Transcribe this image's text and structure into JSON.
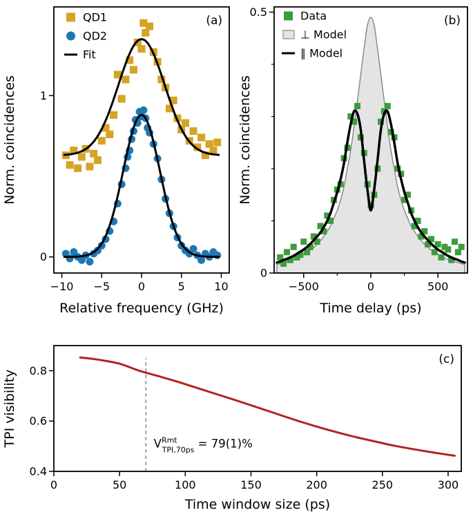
{
  "figure": {
    "background": "#ffffff"
  },
  "colors": {
    "qd1_gold": "#d5a326",
    "qd2_blue": "#1f77b4",
    "data_green": "#3d9c3d",
    "model_gray_fill": "#e4e4e4",
    "model_gray_edge": "#8a8a8a",
    "fit_black": "#000000",
    "visibility_red": "#b22222",
    "dash_gray": "#999999"
  },
  "chart_data": [
    {
      "id": "a",
      "type": "scatter",
      "panel_label": "(a)",
      "xlabel": "Relative frequency (GHz)",
      "ylabel": "Norm. coincidences",
      "xlim": [
        -11,
        11
      ],
      "ylim": [
        -0.1,
        1.55
      ],
      "xticks": [
        -10,
        -5,
        0,
        5,
        10
      ],
      "yticks": [
        0,
        1
      ],
      "series": [
        {
          "name": "QD1",
          "type": "scatter",
          "marker": "square",
          "color": "#d5a326",
          "size": 11,
          "x": [
            -9.5,
            -9,
            -8.5,
            -8,
            -7.5,
            -7,
            -6.5,
            -6,
            -5.5,
            -5,
            -4.5,
            -4,
            -3.5,
            -3,
            -2.5,
            -2,
            -1.5,
            -1,
            -0.5,
            0,
            0.25,
            0.5,
            1,
            1.5,
            2,
            2.5,
            3,
            3.5,
            4,
            4.5,
            5,
            5.5,
            6,
            6.5,
            7,
            7.5,
            8,
            8.5,
            9,
            9.5
          ],
          "y": [
            0.63,
            0.57,
            0.66,
            0.55,
            0.62,
            0.67,
            0.56,
            0.64,
            0.6,
            0.72,
            0.8,
            0.76,
            0.88,
            1.13,
            0.98,
            1.1,
            1.22,
            1.16,
            1.33,
            1.29,
            1.45,
            1.39,
            1.43,
            1.27,
            1.21,
            1.1,
            1.05,
            0.92,
            0.97,
            0.86,
            0.79,
            0.83,
            0.72,
            0.78,
            0.68,
            0.74,
            0.63,
            0.7,
            0.66,
            0.71
          ]
        },
        {
          "name": "QD2",
          "type": "scatter",
          "marker": "circle",
          "color": "#1f77b4",
          "size": 11,
          "x": [
            -9.5,
            -9,
            -8.5,
            -8,
            -7.5,
            -7,
            -6.5,
            -6,
            -5.5,
            -5,
            -4.5,
            -4,
            -3.5,
            -3,
            -2.5,
            -2,
            -1.75,
            -1.5,
            -1.25,
            -1,
            -0.75,
            -0.5,
            -0.25,
            0,
            0.25,
            0.5,
            0.75,
            1,
            1.5,
            2,
            2.5,
            3,
            3.5,
            4,
            4.5,
            5,
            5.5,
            6,
            6.5,
            7,
            7.5,
            8,
            8.5,
            9,
            9.5
          ],
          "y": [
            0.02,
            -0.01,
            0.03,
            0.0,
            -0.02,
            0.01,
            -0.03,
            0.02,
            0.04,
            0.07,
            0.11,
            0.16,
            0.22,
            0.33,
            0.45,
            0.55,
            0.62,
            0.66,
            0.73,
            0.78,
            0.85,
            0.83,
            0.9,
            0.87,
            0.91,
            0.86,
            0.8,
            0.77,
            0.7,
            0.61,
            0.48,
            0.36,
            0.27,
            0.19,
            0.12,
            0.07,
            0.04,
            0.02,
            0.05,
            0.01,
            -0.02,
            0.02,
            0.0,
            0.03,
            0.01
          ]
        },
        {
          "name": "Fit QD1",
          "type": "gaussian",
          "color": "#000000",
          "width": 3,
          "amp": 0.72,
          "center": 0,
          "sigma": 2.9,
          "offset": 0.63,
          "range": [
            -9.8,
            9.8
          ]
        },
        {
          "name": "Fit QD2",
          "type": "gaussian",
          "color": "#000000",
          "width": 3,
          "amp": 0.88,
          "center": 0,
          "sigma": 2.3,
          "offset": 0.0,
          "range": [
            -9.8,
            9.8
          ]
        }
      ],
      "legend": {
        "items": [
          {
            "swatch": "square",
            "color": "#d5a326",
            "label": "QD1"
          },
          {
            "swatch": "circle",
            "color": "#1f77b4",
            "label": "QD2"
          },
          {
            "swatch": "line",
            "color": "#000000",
            "label": "Fit"
          }
        ]
      }
    },
    {
      "id": "b",
      "type": "scatter",
      "panel_label": "(b)",
      "xlabel": "Time delay (ps)",
      "ylabel": "Norm. coincidences",
      "xlim": [
        -720,
        720
      ],
      "ylim": [
        0,
        0.51
      ],
      "xticks": [
        -500,
        0,
        500
      ],
      "yticks": [
        0,
        0.5
      ],
      "xminor": [
        -250,
        250
      ],
      "yminor": [
        0.1,
        0.2,
        0.3,
        0.4
      ],
      "series": [
        {
          "name": "perp Model",
          "type": "area",
          "fill": "#e4e4e4",
          "stroke": "#8a8a8a",
          "width": 1.5,
          "x": [
            -700,
            -675,
            -650,
            -625,
            -600,
            -575,
            -550,
            -525,
            -500,
            -475,
            -450,
            -425,
            -400,
            -375,
            -350,
            -325,
            -300,
            -275,
            -250,
            -225,
            -200,
            -175,
            -150,
            -125,
            -100,
            -75,
            -50,
            -25,
            0,
            25,
            50,
            75,
            100,
            125,
            150,
            175,
            200,
            225,
            250,
            275,
            300,
            325,
            350,
            375,
            400,
            425,
            450,
            475,
            500,
            525,
            550,
            575,
            600,
            625,
            650,
            675,
            700
          ],
          "y": [
            0.016,
            0.018,
            0.02,
            0.022,
            0.024,
            0.026,
            0.029,
            0.032,
            0.036,
            0.04,
            0.044,
            0.049,
            0.055,
            0.062,
            0.07,
            0.08,
            0.09,
            0.105,
            0.12,
            0.14,
            0.165,
            0.2,
            0.235,
            0.28,
            0.33,
            0.38,
            0.43,
            0.475,
            0.49,
            0.475,
            0.43,
            0.38,
            0.33,
            0.28,
            0.235,
            0.2,
            0.165,
            0.14,
            0.12,
            0.105,
            0.09,
            0.08,
            0.07,
            0.062,
            0.055,
            0.049,
            0.044,
            0.04,
            0.036,
            0.032,
            0.029,
            0.026,
            0.024,
            0.022,
            0.02,
            0.018,
            0.016
          ]
        },
        {
          "name": "Data",
          "type": "scatter",
          "marker": "square",
          "color": "#3d9c3d",
          "size": 9,
          "x": [
            -675,
            -650,
            -625,
            -600,
            -575,
            -550,
            -525,
            -500,
            -475,
            -450,
            -425,
            -400,
            -375,
            -350,
            -325,
            -300,
            -275,
            -250,
            -225,
            -200,
            -175,
            -150,
            -125,
            -100,
            -75,
            -50,
            -25,
            0,
            25,
            50,
            75,
            100,
            125,
            150,
            175,
            200,
            225,
            250,
            275,
            300,
            325,
            350,
            375,
            400,
            425,
            450,
            475,
            500,
            525,
            550,
            575,
            600,
            625,
            650,
            675
          ],
          "y": [
            0.03,
            0.018,
            0.04,
            0.025,
            0.05,
            0.03,
            0.035,
            0.06,
            0.04,
            0.05,
            0.07,
            0.06,
            0.09,
            0.08,
            0.11,
            0.1,
            0.14,
            0.16,
            0.17,
            0.22,
            0.24,
            0.3,
            0.29,
            0.32,
            0.26,
            0.23,
            0.17,
            0.13,
            0.15,
            0.2,
            0.29,
            0.31,
            0.32,
            0.27,
            0.26,
            0.2,
            0.19,
            0.14,
            0.15,
            0.12,
            0.09,
            0.1,
            0.07,
            0.08,
            0.055,
            0.065,
            0.04,
            0.055,
            0.03,
            0.05,
            0.045,
            0.025,
            0.06,
            0.04,
            0.05
          ]
        },
        {
          "name": "par Model",
          "type": "line",
          "color": "#000000",
          "width": 3.5,
          "x": [
            -700,
            -675,
            -650,
            -625,
            -600,
            -575,
            -550,
            -525,
            -500,
            -475,
            -450,
            -425,
            -400,
            -375,
            -350,
            -325,
            -300,
            -275,
            -250,
            -225,
            -200,
            -175,
            -150,
            -125,
            -100,
            -75,
            -50,
            -25,
            0,
            25,
            50,
            75,
            100,
            125,
            150,
            175,
            200,
            225,
            250,
            275,
            300,
            325,
            350,
            375,
            400,
            425,
            450,
            475,
            500,
            525,
            550,
            575,
            600,
            625,
            650,
            675,
            700
          ],
          "y": [
            0.02,
            0.022,
            0.025,
            0.027,
            0.03,
            0.033,
            0.037,
            0.041,
            0.045,
            0.05,
            0.056,
            0.063,
            0.07,
            0.078,
            0.088,
            0.1,
            0.115,
            0.135,
            0.155,
            0.18,
            0.21,
            0.25,
            0.285,
            0.31,
            0.305,
            0.275,
            0.215,
            0.16,
            0.12,
            0.16,
            0.215,
            0.275,
            0.305,
            0.31,
            0.285,
            0.25,
            0.21,
            0.18,
            0.155,
            0.135,
            0.115,
            0.1,
            0.088,
            0.078,
            0.07,
            0.063,
            0.056,
            0.05,
            0.045,
            0.041,
            0.037,
            0.033,
            0.03,
            0.027,
            0.025,
            0.022,
            0.02
          ]
        }
      ],
      "legend": {
        "items": [
          {
            "swatch": "square",
            "color": "#3d9c3d",
            "label": "Data"
          },
          {
            "swatch": "area",
            "color": "#e4e4e4",
            "stroke": "#8a8a8a",
            "label": "⊥ Model"
          },
          {
            "swatch": "line",
            "color": "#000000",
            "label": "∥ Model"
          }
        ]
      }
    },
    {
      "id": "c",
      "type": "line",
      "panel_label": "(c)",
      "xlabel": "Time window size (ps)",
      "ylabel": "TPI visibility",
      "xlim": [
        0,
        310
      ],
      "ylim": [
        0.4,
        0.9
      ],
      "xticks": [
        0,
        50,
        100,
        150,
        200,
        250,
        300
      ],
      "yticks": [
        0.4,
        0.6,
        0.8
      ],
      "series": [
        {
          "name": "TPI visibility",
          "type": "line",
          "color": "#b22222",
          "width": 3,
          "x": [
            20,
            35,
            50,
            65,
            80,
            95,
            110,
            125,
            140,
            155,
            170,
            185,
            200,
            215,
            230,
            245,
            260,
            275,
            290,
            305
          ],
          "y": [
            0.853,
            0.843,
            0.828,
            0.8,
            0.778,
            0.755,
            0.73,
            0.705,
            0.68,
            0.654,
            0.628,
            0.602,
            0.578,
            0.556,
            0.536,
            0.518,
            0.501,
            0.487,
            0.474,
            0.462
          ]
        }
      ],
      "annotations": [
        {
          "type": "vline",
          "x": 70,
          "from": 0.4,
          "to": 0.85,
          "color": "#999999",
          "dash": "5 4",
          "width": 1.8
        },
        {
          "type": "label",
          "x": 76,
          "y": 0.495,
          "base": "V",
          "sup": "Rmt",
          "sub": "TPI,70ps",
          "rest": " = 79(1)%"
        }
      ]
    }
  ]
}
